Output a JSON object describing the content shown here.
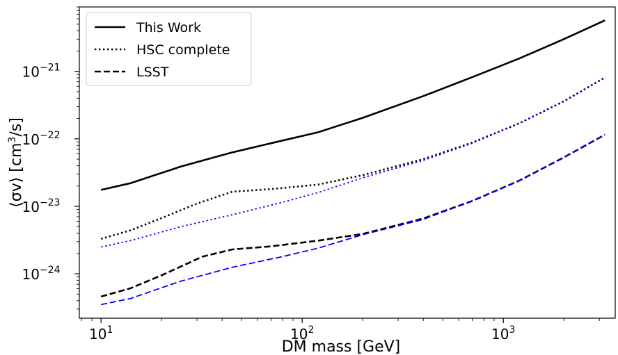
{
  "chart_data": {
    "type": "line",
    "title": "",
    "xlabel": "DM mass [GeV]",
    "ylabel_parts": {
      "pre": "⟨σv⟩ [cm",
      "sup": "3",
      "post": "/s]"
    },
    "xscale": "log",
    "yscale": "log",
    "xlim": [
      7.8,
      3600
    ],
    "ylim": [
      2.2e-25,
      9e-21
    ],
    "xticks": [
      {
        "value": 10,
        "base": "10",
        "exp": "1"
      },
      {
        "value": 100,
        "base": "10",
        "exp": "2"
      },
      {
        "value": 1000,
        "base": "10",
        "exp": "3"
      }
    ],
    "yticks": [
      {
        "value": 1e-24,
        "base": "10",
        "exp": "−24"
      },
      {
        "value": 1e-23,
        "base": "10",
        "exp": "−23"
      },
      {
        "value": 1e-22,
        "base": "10",
        "exp": "−22"
      },
      {
        "value": 1e-21,
        "base": "10",
        "exp": "−21"
      }
    ],
    "legend_position": "top-left",
    "legend": [
      {
        "label": "This Work",
        "style": "solid"
      },
      {
        "label": "HSC complete",
        "style": "dotted"
      },
      {
        "label": "LSST",
        "style": "dashed"
      }
    ],
    "series": [
      {
        "name": "This Work",
        "color": "#000000",
        "style": "solid",
        "points": [
          [
            10,
            1.75e-23
          ],
          [
            14,
            2.2e-23
          ],
          [
            25,
            3.9e-23
          ],
          [
            45,
            6.3e-23
          ],
          [
            70,
            8.6e-23
          ],
          [
            120,
            1.25e-22
          ],
          [
            200,
            2.05e-22
          ],
          [
            400,
            4.3e-22
          ],
          [
            700,
            8.2e-22
          ],
          [
            1200,
            1.55e-21
          ],
          [
            2000,
            3e-21
          ],
          [
            3200,
            5.7e-21
          ]
        ]
      },
      {
        "name": "HSC complete",
        "color": "#000000",
        "style": "dotted",
        "points": [
          [
            10,
            3.3e-24
          ],
          [
            14,
            4.4e-24
          ],
          [
            20,
            6.7e-24
          ],
          [
            30,
            1.1e-23
          ],
          [
            45,
            1.65e-23
          ],
          [
            70,
            1.8e-23
          ],
          [
            120,
            2.1e-23
          ],
          [
            200,
            2.9e-23
          ],
          [
            400,
            5e-23
          ],
          [
            700,
            8.8e-23
          ],
          [
            1200,
            1.7e-22
          ],
          [
            2000,
            3.6e-22
          ],
          [
            3200,
            8.1e-22
          ]
        ]
      },
      {
        "color": "#0000ff",
        "style": "dotted",
        "points": [
          [
            10,
            2.5e-24
          ],
          [
            14,
            3.1e-24
          ],
          [
            25,
            5e-24
          ],
          [
            45,
            7.5e-24
          ],
          [
            80,
            1.15e-23
          ],
          [
            120,
            1.6e-23
          ],
          [
            200,
            2.65e-23
          ],
          [
            400,
            4.8e-23
          ],
          [
            700,
            8.6e-23
          ],
          [
            1200,
            1.7e-22
          ],
          [
            2000,
            3.6e-22
          ],
          [
            3200,
            8.1e-22
          ]
        ]
      },
      {
        "name": "LSST",
        "color": "#000000",
        "style": "dashed",
        "points": [
          [
            10,
            4.6e-25
          ],
          [
            14,
            6.1e-25
          ],
          [
            20,
            9.5e-25
          ],
          [
            32,
            1.8e-24
          ],
          [
            45,
            2.3e-24
          ],
          [
            70,
            2.55e-24
          ],
          [
            120,
            3.1e-24
          ],
          [
            200,
            3.9e-24
          ],
          [
            400,
            6.6e-24
          ],
          [
            700,
            1.2e-23
          ],
          [
            1200,
            2.4e-23
          ],
          [
            2000,
            5.3e-23
          ],
          [
            3200,
            1.15e-22
          ]
        ]
      },
      {
        "color": "#0000ff",
        "style": "dashed",
        "points": [
          [
            10,
            3.5e-25
          ],
          [
            14,
            4.3e-25
          ],
          [
            25,
            7.8e-25
          ],
          [
            45,
            1.25e-24
          ],
          [
            80,
            1.8e-24
          ],
          [
            120,
            2.4e-24
          ],
          [
            200,
            3.8e-24
          ],
          [
            400,
            6.4e-24
          ],
          [
            700,
            1.2e-23
          ],
          [
            1200,
            2.4e-23
          ],
          [
            2000,
            5.3e-23
          ],
          [
            3200,
            1.15e-22
          ]
        ]
      }
    ]
  }
}
